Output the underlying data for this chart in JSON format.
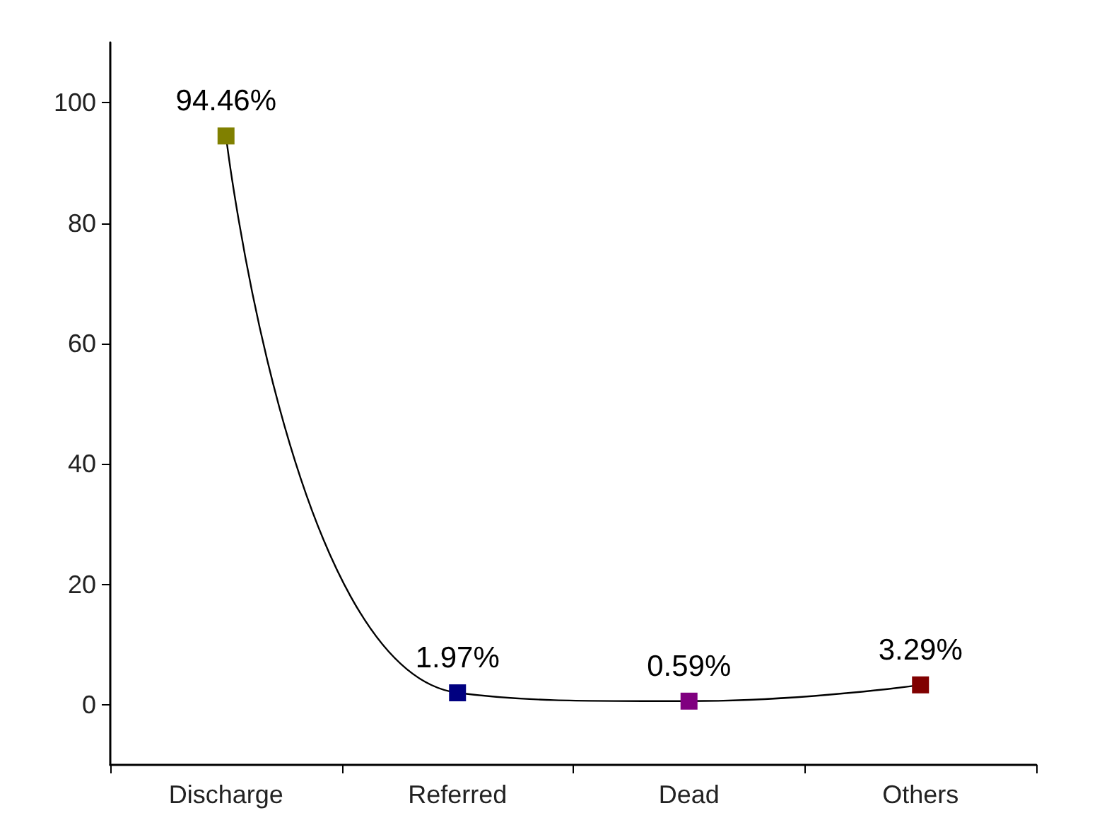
{
  "chart_data": {
    "type": "line",
    "categories": [
      "Discharge",
      "Referred",
      "Dead",
      "Others"
    ],
    "values": [
      94.46,
      1.97,
      0.59,
      3.29
    ],
    "value_labels": [
      "94.46%",
      "1.97%",
      "0.59%",
      "3.29%"
    ],
    "colors": [
      "#808000",
      "#000080",
      "#800080",
      "#800000"
    ],
    "color": "#000000",
    "marker": "square",
    "line_style": "solid",
    "ylim": [
      -10,
      110
    ],
    "yticks": [
      0,
      20,
      40,
      60,
      80,
      100
    ],
    "grid": false
  }
}
